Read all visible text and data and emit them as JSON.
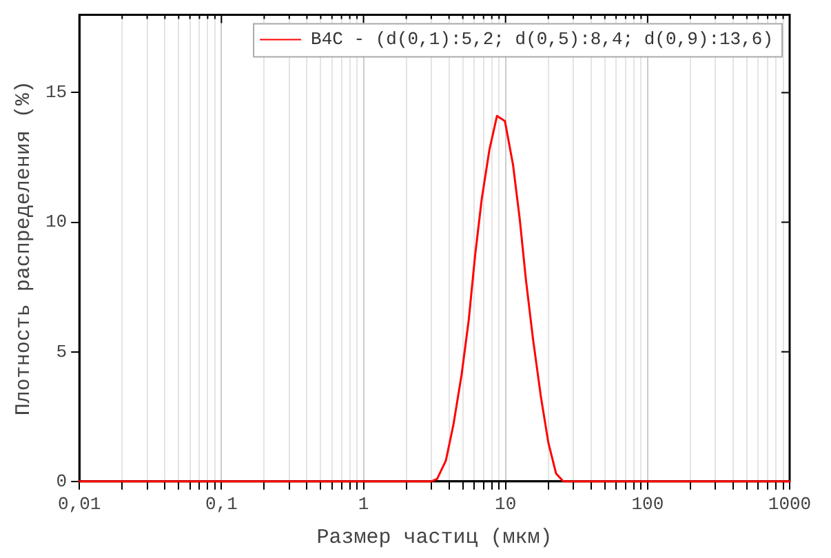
{
  "chart_data": {
    "type": "line",
    "xlabel": "Размер частиц (мкм)",
    "ylabel": "Плотность распределения (%)",
    "log": "x",
    "grid": "x",
    "legend": "top right",
    "marker": "none",
    "line_style": "solid",
    "xlim": [
      0.01,
      1000
    ],
    "ylim": [
      0,
      18
    ],
    "xticks": [
      {
        "value": 0.01,
        "label": "0,01"
      },
      {
        "value": 0.02,
        "label": null
      },
      {
        "value": 0.03,
        "label": null
      },
      {
        "value": 0.04,
        "label": null
      },
      {
        "value": 0.05,
        "label": null
      },
      {
        "value": 0.06,
        "label": null
      },
      {
        "value": 0.07,
        "label": null
      },
      {
        "value": 0.08,
        "label": null
      },
      {
        "value": 0.09,
        "label": null
      },
      {
        "value": 0.1,
        "label": "0,1"
      },
      {
        "value": 0.2,
        "label": null
      },
      {
        "value": 0.3,
        "label": null
      },
      {
        "value": 0.4,
        "label": null
      },
      {
        "value": 0.5,
        "label": null
      },
      {
        "value": 0.6,
        "label": null
      },
      {
        "value": 0.7,
        "label": null
      },
      {
        "value": 0.8,
        "label": null
      },
      {
        "value": 0.9,
        "label": null
      },
      1,
      {
        "value": 2,
        "label": null
      },
      {
        "value": 3,
        "label": null
      },
      {
        "value": 4,
        "label": null
      },
      {
        "value": 5,
        "label": null
      },
      {
        "value": 6,
        "label": null
      },
      {
        "value": 7,
        "label": null
      },
      {
        "value": 8,
        "label": null
      },
      {
        "value": 9,
        "label": null
      },
      10,
      {
        "value": 20,
        "label": null
      },
      {
        "value": 30,
        "label": null
      },
      {
        "value": 40,
        "label": null
      },
      {
        "value": 50,
        "label": null
      },
      {
        "value": 60,
        "label": null
      },
      {
        "value": 70,
        "label": null
      },
      {
        "value": 80,
        "label": null
      },
      {
        "value": 90,
        "label": null
      },
      100,
      {
        "value": 200,
        "label": null
      },
      {
        "value": 300,
        "label": null
      },
      {
        "value": 400,
        "label": null
      },
      {
        "value": 500,
        "label": null
      },
      {
        "value": 600,
        "label": null
      },
      {
        "value": 700,
        "label": null
      },
      {
        "value": 800,
        "label": null
      },
      {
        "value": 900,
        "label": null
      },
      1000
    ],
    "yticks": [
      0,
      5,
      10,
      15
    ],
    "x": [
      0.01,
      3.0,
      3.3,
      3.8,
      4.3,
      4.9,
      5.5,
      6.1,
      6.8,
      7.7,
      8.7,
      9.9,
      11.3,
      12.6,
      13.9,
      15.6,
      17.7,
      20.0,
      22.7,
      25.5,
      1000
    ],
    "series": [
      {
        "name": "B4C - (d(0,1):5,2; d(0,5):8,4; d(0,9):13,6)",
        "color": "#ff0000",
        "values": [
          0,
          0,
          0.1,
          0.8,
          2.2,
          4.1,
          6.2,
          8.7,
          10.9,
          12.8,
          14.1,
          13.9,
          12.2,
          10.1,
          7.8,
          5.5,
          3.3,
          1.5,
          0.3,
          0,
          0
        ]
      }
    ]
  }
}
